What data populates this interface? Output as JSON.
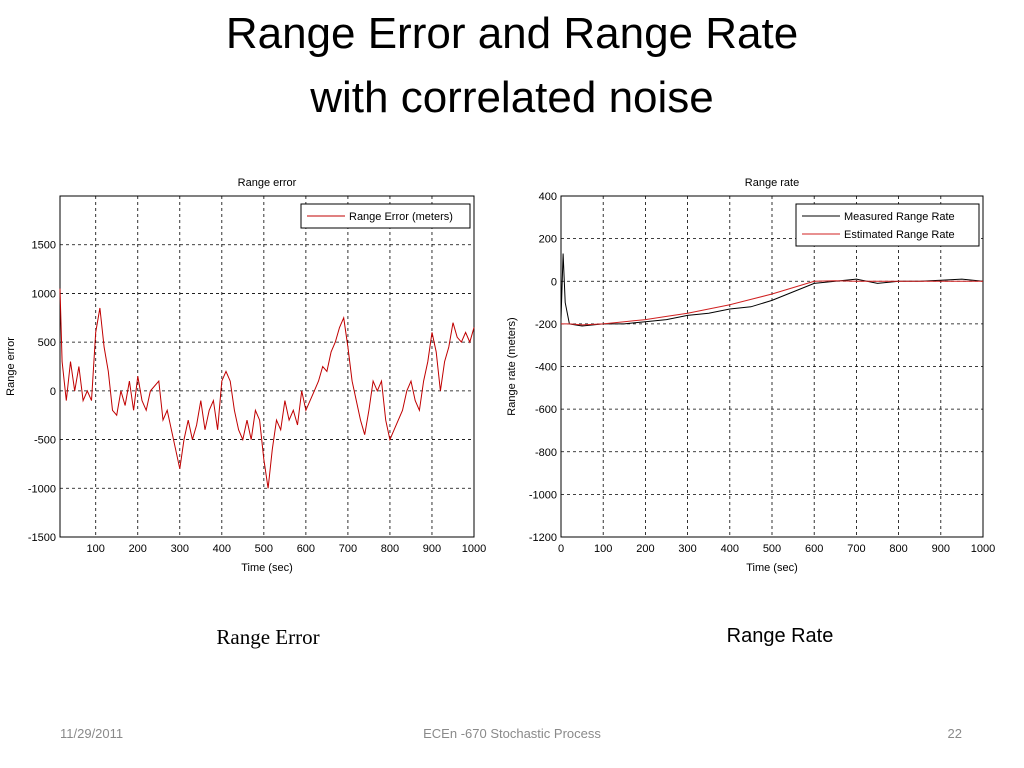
{
  "slide": {
    "title": [
      "Range Error and Range Rate",
      "with correlated noise"
    ],
    "captions": [
      "Range Error",
      "Range Rate"
    ],
    "footer": {
      "date": "11/29/2011",
      "center": "ECEn -670 Stochastic Process",
      "page": "22"
    }
  },
  "chart_data": [
    {
      "type": "line",
      "title": "Range error",
      "x_label": "Time (sec)",
      "y_label": "Range error",
      "xlim": [
        15,
        1000
      ],
      "ylim": [
        -1500,
        2000
      ],
      "xticks": [
        100,
        200,
        300,
        400,
        500,
        600,
        700,
        800,
        900,
        1000
      ],
      "yticks": [
        -1500,
        -1000,
        -500,
        0,
        500,
        1000,
        1500
      ],
      "grid": true,
      "legend": "upper right",
      "x": [
        15,
        20,
        30,
        40,
        50,
        60,
        70,
        80,
        90,
        100,
        110,
        120,
        130,
        140,
        150,
        160,
        170,
        180,
        190,
        200,
        210,
        220,
        230,
        240,
        250,
        260,
        270,
        280,
        290,
        300,
        310,
        320,
        330,
        340,
        350,
        360,
        370,
        380,
        390,
        400,
        410,
        420,
        430,
        440,
        450,
        460,
        470,
        480,
        490,
        500,
        510,
        520,
        530,
        540,
        550,
        560,
        570,
        580,
        590,
        600,
        610,
        620,
        630,
        640,
        650,
        660,
        670,
        680,
        690,
        700,
        710,
        720,
        730,
        740,
        750,
        760,
        770,
        780,
        790,
        800,
        810,
        820,
        830,
        840,
        850,
        860,
        870,
        880,
        890,
        900,
        910,
        920,
        930,
        940,
        950,
        960,
        970,
        980,
        990,
        1000
      ],
      "series": [
        {
          "name": "Range Error (meters)",
          "color": "#c00000",
          "values": [
            1050,
            300,
            -100,
            300,
            0,
            250,
            -100,
            0,
            -100,
            600,
            850,
            450,
            200,
            -200,
            -250,
            0,
            -150,
            100,
            -200,
            150,
            -100,
            -200,
            0,
            50,
            100,
            -300,
            -200,
            -400,
            -600,
            -800,
            -500,
            -300,
            -500,
            -350,
            -100,
            -400,
            -200,
            -100,
            -400,
            100,
            200,
            100,
            -200,
            -400,
            -500,
            -300,
            -500,
            -200,
            -300,
            -700,
            -1000,
            -600,
            -300,
            -400,
            -100,
            -300,
            -200,
            -350,
            0,
            -200,
            -100,
            0,
            100,
            250,
            200,
            400,
            500,
            650,
            750,
            450,
            100,
            -100,
            -300,
            -450,
            -200,
            100,
            0,
            100,
            -300,
            -500,
            -400,
            -300,
            -200,
            0,
            100,
            -100,
            -200,
            100,
            300,
            600,
            400,
            0,
            300,
            450,
            700,
            550,
            500,
            600,
            500,
            650
          ]
        }
      ]
    },
    {
      "type": "line",
      "title": "Range rate",
      "x_label": "Time (sec)",
      "y_label": "Range rate (meters)",
      "xlim": [
        0,
        1000
      ],
      "ylim": [
        -1200,
        400
      ],
      "xticks": [
        0,
        100,
        200,
        300,
        400,
        500,
        600,
        700,
        800,
        900,
        1000
      ],
      "yticks": [
        -1200,
        -1000,
        -800,
        -600,
        -400,
        -200,
        0,
        200,
        400
      ],
      "grid": true,
      "legend": "upper right",
      "x": [
        0,
        5,
        10,
        20,
        50,
        100,
        150,
        200,
        250,
        300,
        350,
        400,
        450,
        500,
        550,
        600,
        650,
        700,
        750,
        800,
        850,
        900,
        950,
        1000
      ],
      "series": [
        {
          "name": "Measured Range Rate",
          "color": "#000000",
          "values": [
            -180,
            130,
            -100,
            -200,
            -210,
            -200,
            -200,
            -190,
            -180,
            -160,
            -150,
            -130,
            -120,
            -90,
            -50,
            -10,
            0,
            10,
            -10,
            0,
            0,
            5,
            10,
            0
          ]
        },
        {
          "name": "Estimated Range Rate",
          "color": "#d02020",
          "values": [
            -200,
            -200,
            -200,
            -200,
            -205,
            -200,
            -190,
            -180,
            -165,
            -150,
            -130,
            -110,
            -85,
            -60,
            -30,
            0,
            2,
            0,
            0,
            0,
            0,
            0,
            0,
            0
          ]
        }
      ]
    }
  ]
}
